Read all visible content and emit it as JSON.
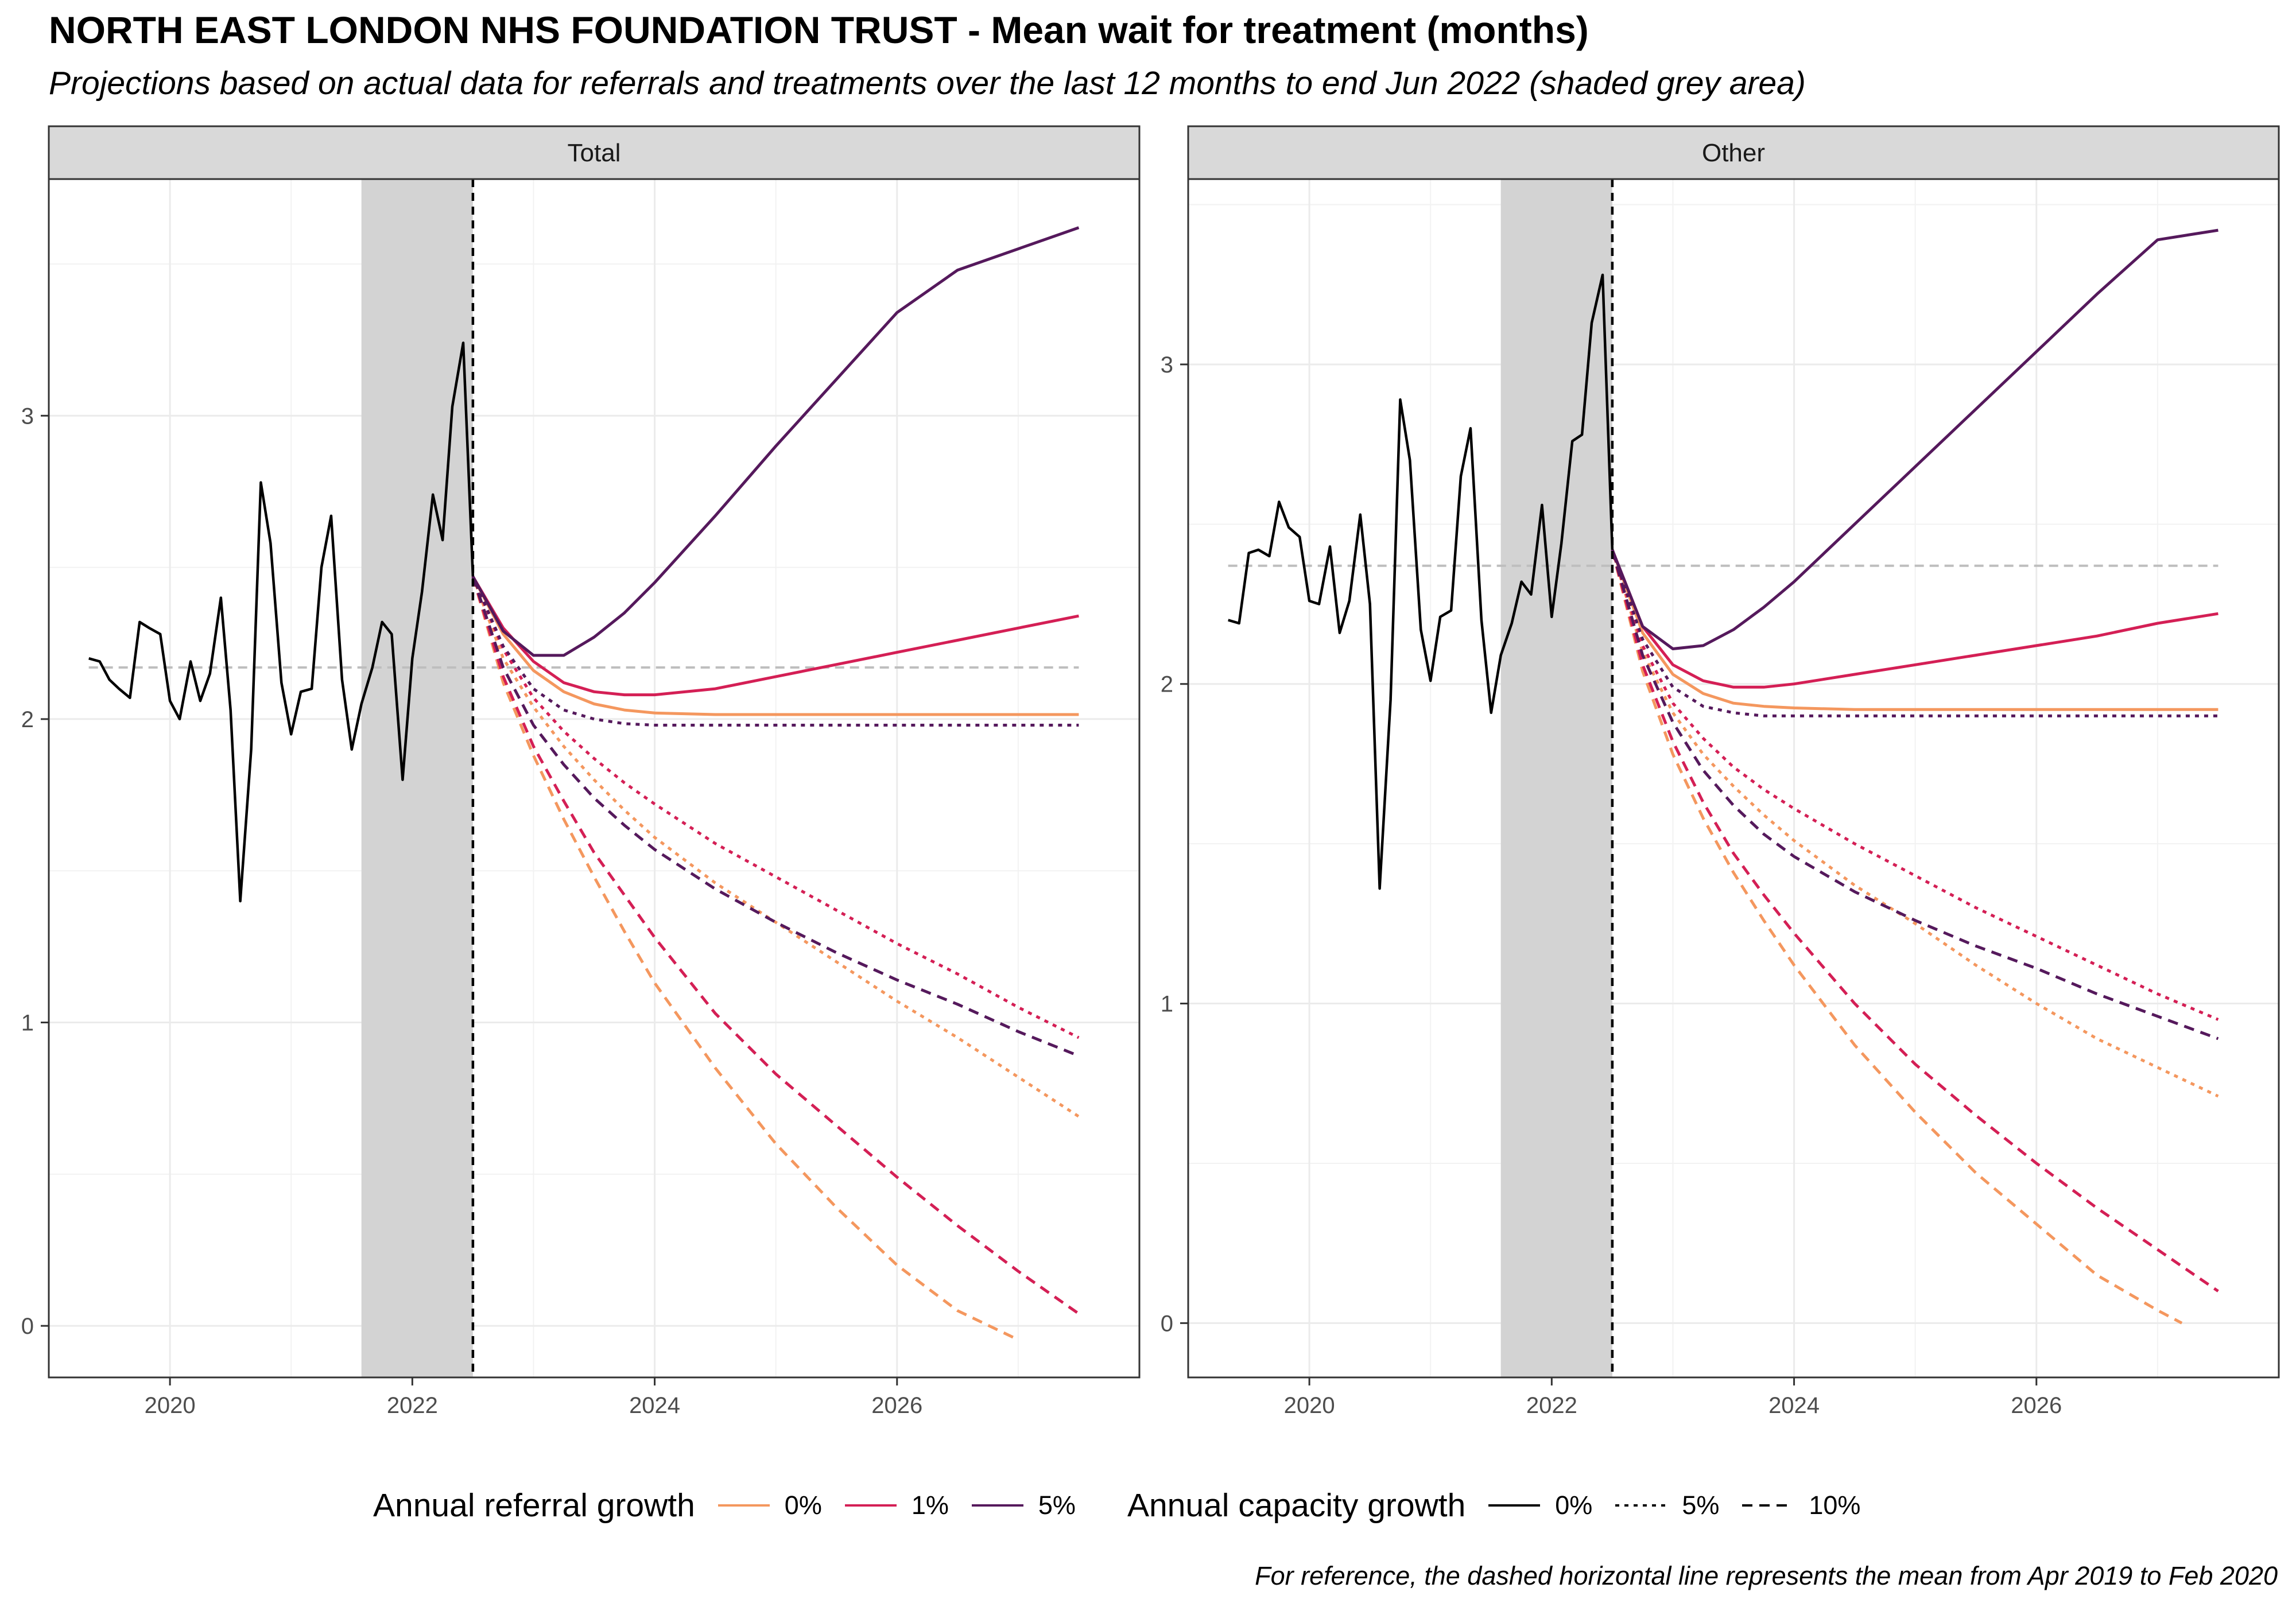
{
  "title": "NORTH EAST LONDON NHS FOUNDATION TRUST - Mean wait for treatment (months)",
  "subtitle": "Projections based on actual data for referrals and treatments over the last 12 months to end Jun 2022 (shaded grey area)",
  "caption": "For reference, the dashed horizontal line represents the mean from Apr 2019 to Feb 2020",
  "legend": {
    "referral": {
      "title": "Annual referral growth",
      "items": [
        {
          "label": "0%",
          "color": "#F4975E"
        },
        {
          "label": "1%",
          "color": "#D41F55"
        },
        {
          "label": "5%",
          "color": "#55195C"
        }
      ]
    },
    "capacity": {
      "title": "Annual capacity growth",
      "items": [
        {
          "label": "0%",
          "dash": "solid"
        },
        {
          "label": "5%",
          "dash": "dotted"
        },
        {
          "label": "10%",
          "dash": "dashed"
        }
      ]
    }
  },
  "chart_data": [
    {
      "type": "line",
      "panel": "Total",
      "xlim": [
        2019.0,
        2028.0
      ],
      "ylim": [
        -0.17,
        3.78
      ],
      "x_ticks": [
        2020,
        2022,
        2024,
        2026
      ],
      "y_ticks": [
        0,
        1,
        2,
        3
      ],
      "shaded_period": [
        2021.58,
        2022.5
      ],
      "projection_start": 2022.5,
      "reference_mean": 2.17,
      "actual": {
        "x": [
          2019.33,
          2019.42,
          2019.5,
          2019.58,
          2019.67,
          2019.75,
          2019.83,
          2019.92,
          2020.0,
          2020.08,
          2020.17,
          2020.25,
          2020.33,
          2020.42,
          2020.5,
          2020.58,
          2020.67,
          2020.75,
          2020.83,
          2020.92,
          2021.0,
          2021.08,
          2021.17,
          2021.25,
          2021.33,
          2021.42,
          2021.5,
          2021.58,
          2021.67,
          2021.75,
          2021.83,
          2021.92,
          2022.0,
          2022.08,
          2022.17,
          2022.25,
          2022.33,
          2022.42,
          2022.5
        ],
        "y": [
          2.2,
          2.19,
          2.13,
          2.1,
          2.07,
          2.32,
          2.3,
          2.28,
          2.06,
          2.0,
          2.19,
          2.06,
          2.15,
          2.4,
          2.03,
          1.4,
          1.9,
          2.78,
          2.58,
          2.12,
          1.95,
          2.09,
          2.1,
          2.5,
          2.67,
          2.13,
          1.9,
          2.05,
          2.17,
          2.32,
          2.28,
          1.8,
          2.2,
          2.42,
          2.74,
          2.59,
          3.03,
          3.24,
          2.47
        ]
      },
      "projections": [
        {
          "referral": "0%",
          "capacity": "0%",
          "x": [
            2022.5,
            2022.75,
            2023.0,
            2023.25,
            2023.5,
            2023.75,
            2024.0,
            2024.5,
            2025.0,
            2025.5,
            2026.0,
            2026.5,
            2027.0,
            2027.5
          ],
          "y": [
            2.47,
            2.28,
            2.16,
            2.09,
            2.05,
            2.03,
            2.02,
            2.015,
            2.015,
            2.015,
            2.015,
            2.015,
            2.015,
            2.015
          ]
        },
        {
          "referral": "0%",
          "capacity": "5%",
          "x": [
            2022.5,
            2022.75,
            2023.0,
            2023.25,
            2023.5,
            2023.75,
            2024.0,
            2024.5,
            2025.0,
            2025.5,
            2026.0,
            2026.5,
            2027.0,
            2027.5
          ],
          "y": [
            2.47,
            2.2,
            2.04,
            1.91,
            1.8,
            1.7,
            1.61,
            1.46,
            1.33,
            1.2,
            1.07,
            0.95,
            0.82,
            0.69
          ]
        },
        {
          "referral": "0%",
          "capacity": "10%",
          "x": [
            2022.5,
            2022.75,
            2023.0,
            2023.25,
            2023.5,
            2023.75,
            2024.0,
            2024.5,
            2025.0,
            2025.5,
            2026.0,
            2026.5,
            2026.97
          ],
          "y": [
            2.47,
            2.12,
            1.88,
            1.67,
            1.48,
            1.3,
            1.13,
            0.85,
            0.6,
            0.39,
            0.2,
            0.05,
            -0.04
          ]
        },
        {
          "referral": "1%",
          "capacity": "0%",
          "x": [
            2022.5,
            2022.75,
            2023.0,
            2023.25,
            2023.5,
            2023.75,
            2024.0,
            2024.5,
            2025.0,
            2025.5,
            2026.0,
            2026.5,
            2027.0,
            2027.5
          ],
          "y": [
            2.47,
            2.3,
            2.19,
            2.12,
            2.09,
            2.08,
            2.08,
            2.1,
            2.14,
            2.18,
            2.22,
            2.26,
            2.3,
            2.34
          ]
        },
        {
          "referral": "1%",
          "capacity": "5%",
          "x": [
            2022.5,
            2022.75,
            2023.0,
            2023.25,
            2023.5,
            2023.75,
            2024.0,
            2024.5,
            2025.0,
            2025.5,
            2026.0,
            2026.5,
            2027.0,
            2027.5
          ],
          "y": [
            2.47,
            2.23,
            2.07,
            1.96,
            1.87,
            1.79,
            1.72,
            1.59,
            1.48,
            1.37,
            1.26,
            1.16,
            1.05,
            0.95
          ]
        },
        {
          "referral": "1%",
          "capacity": "10%",
          "x": [
            2022.5,
            2022.75,
            2023.0,
            2023.25,
            2023.5,
            2023.75,
            2024.0,
            2024.5,
            2025.0,
            2025.5,
            2026.0,
            2026.5,
            2027.0,
            2027.5
          ],
          "y": [
            2.47,
            2.14,
            1.91,
            1.73,
            1.56,
            1.42,
            1.28,
            1.03,
            0.83,
            0.66,
            0.49,
            0.33,
            0.18,
            0.04
          ]
        },
        {
          "referral": "5%",
          "capacity": "0%",
          "x": [
            2022.5,
            2022.75,
            2023.0,
            2023.25,
            2023.5,
            2023.75,
            2024.0,
            2024.5,
            2025.0,
            2025.5,
            2026.0,
            2026.5,
            2027.0,
            2027.5
          ],
          "y": [
            2.47,
            2.29,
            2.21,
            2.21,
            2.27,
            2.35,
            2.45,
            2.67,
            2.9,
            3.12,
            3.34,
            3.48,
            3.55,
            3.62
          ]
        },
        {
          "referral": "5%",
          "capacity": "5%",
          "x": [
            2022.5,
            2022.75,
            2023.0,
            2023.25,
            2023.5,
            2023.75,
            2024.0,
            2024.5,
            2025.0,
            2025.5,
            2026.0,
            2026.5,
            2027.0,
            2027.5
          ],
          "y": [
            2.47,
            2.24,
            2.1,
            2.03,
            2.0,
            1.985,
            1.98,
            1.98,
            1.98,
            1.98,
            1.98,
            1.98,
            1.98,
            1.98
          ]
        },
        {
          "referral": "5%",
          "capacity": "10%",
          "x": [
            2022.5,
            2022.75,
            2023.0,
            2023.25,
            2023.5,
            2023.75,
            2024.0,
            2024.5,
            2025.0,
            2025.5,
            2026.0,
            2026.5,
            2027.0,
            2027.5
          ],
          "y": [
            2.47,
            2.17,
            1.98,
            1.85,
            1.74,
            1.65,
            1.57,
            1.44,
            1.33,
            1.23,
            1.14,
            1.06,
            0.97,
            0.89
          ]
        }
      ]
    },
    {
      "type": "line",
      "panel": "Other",
      "xlim": [
        2019.0,
        2028.0
      ],
      "ylim": [
        -0.17,
        3.58
      ],
      "x_ticks": [
        2020,
        2022,
        2024,
        2026
      ],
      "y_ticks": [
        0,
        1,
        2,
        3
      ],
      "shaded_period": [
        2021.58,
        2022.5
      ],
      "projection_start": 2022.5,
      "reference_mean": 2.37,
      "actual": {
        "x": [
          2019.33,
          2019.42,
          2019.5,
          2019.58,
          2019.67,
          2019.75,
          2019.83,
          2019.92,
          2020.0,
          2020.08,
          2020.17,
          2020.25,
          2020.33,
          2020.42,
          2020.5,
          2020.58,
          2020.67,
          2020.75,
          2020.83,
          2020.92,
          2021.0,
          2021.08,
          2021.17,
          2021.25,
          2021.33,
          2021.42,
          2021.5,
          2021.58,
          2021.67,
          2021.75,
          2021.83,
          2021.92,
          2022.0,
          2022.08,
          2022.17,
          2022.25,
          2022.33,
          2022.42,
          2022.5
        ],
        "y": [
          2.2,
          2.19,
          2.41,
          2.42,
          2.4,
          2.57,
          2.49,
          2.46,
          2.26,
          2.25,
          2.43,
          2.16,
          2.26,
          2.53,
          2.25,
          1.36,
          1.95,
          2.89,
          2.7,
          2.17,
          2.01,
          2.21,
          2.23,
          2.65,
          2.8,
          2.2,
          1.91,
          2.09,
          2.19,
          2.32,
          2.28,
          2.56,
          2.21,
          2.44,
          2.76,
          2.78,
          3.13,
          3.28,
          2.42
        ]
      },
      "projections": [
        {
          "referral": "0%",
          "capacity": "0%",
          "x": [
            2022.5,
            2022.75,
            2023.0,
            2023.25,
            2023.5,
            2023.75,
            2024.0,
            2024.5,
            2025.0,
            2025.5,
            2026.0,
            2026.5,
            2027.0,
            2027.5
          ],
          "y": [
            2.42,
            2.16,
            2.03,
            1.97,
            1.94,
            1.93,
            1.925,
            1.92,
            1.92,
            1.92,
            1.92,
            1.92,
            1.92,
            1.92
          ]
        },
        {
          "referral": "0%",
          "capacity": "5%",
          "x": [
            2022.5,
            2022.75,
            2023.0,
            2023.25,
            2023.5,
            2023.75,
            2024.0,
            2024.5,
            2025.0,
            2025.5,
            2026.0,
            2026.5,
            2027.0,
            2027.5
          ],
          "y": [
            2.42,
            2.1,
            1.91,
            1.78,
            1.68,
            1.59,
            1.51,
            1.37,
            1.25,
            1.12,
            1.0,
            0.89,
            0.8,
            0.71
          ]
        },
        {
          "referral": "0%",
          "capacity": "10%",
          "x": [
            2022.5,
            2022.75,
            2023.0,
            2023.25,
            2023.5,
            2023.75,
            2024.0,
            2024.5,
            2025.0,
            2025.5,
            2026.0,
            2026.5,
            2027.0,
            2027.2
          ],
          "y": [
            2.42,
            2.04,
            1.78,
            1.58,
            1.41,
            1.26,
            1.12,
            0.87,
            0.66,
            0.47,
            0.31,
            0.15,
            0.04,
            0.0
          ]
        },
        {
          "referral": "1%",
          "capacity": "0%",
          "x": [
            2022.5,
            2022.75,
            2023.0,
            2023.25,
            2023.5,
            2023.75,
            2024.0,
            2024.5,
            2025.0,
            2025.5,
            2026.0,
            2026.5,
            2027.0,
            2027.5
          ],
          "y": [
            2.42,
            2.18,
            2.06,
            2.01,
            1.99,
            1.99,
            2.0,
            2.03,
            2.06,
            2.09,
            2.12,
            2.15,
            2.19,
            2.22
          ]
        },
        {
          "referral": "1%",
          "capacity": "5%",
          "x": [
            2022.5,
            2022.75,
            2023.0,
            2023.25,
            2023.5,
            2023.75,
            2024.0,
            2024.5,
            2025.0,
            2025.5,
            2026.0,
            2026.5,
            2027.0,
            2027.5
          ],
          "y": [
            2.42,
            2.12,
            1.94,
            1.83,
            1.74,
            1.67,
            1.61,
            1.5,
            1.4,
            1.3,
            1.21,
            1.12,
            1.03,
            0.95
          ]
        },
        {
          "referral": "1%",
          "capacity": "10%",
          "x": [
            2022.5,
            2022.75,
            2023.0,
            2023.25,
            2023.5,
            2023.75,
            2024.0,
            2024.5,
            2025.0,
            2025.5,
            2026.0,
            2026.5,
            2027.0,
            2027.5
          ],
          "y": [
            2.42,
            2.06,
            1.82,
            1.63,
            1.47,
            1.34,
            1.22,
            1.0,
            0.81,
            0.65,
            0.5,
            0.36,
            0.23,
            0.1
          ]
        },
        {
          "referral": "5%",
          "capacity": "0%",
          "x": [
            2022.5,
            2022.75,
            2023.0,
            2023.25,
            2023.5,
            2023.75,
            2024.0,
            2024.5,
            2025.0,
            2025.5,
            2026.0,
            2026.5,
            2027.0,
            2027.5
          ],
          "y": [
            2.42,
            2.18,
            2.11,
            2.12,
            2.17,
            2.24,
            2.32,
            2.5,
            2.68,
            2.86,
            3.04,
            3.22,
            3.39,
            3.42
          ]
        },
        {
          "referral": "5%",
          "capacity": "5%",
          "x": [
            2022.5,
            2022.75,
            2023.0,
            2023.25,
            2023.5,
            2023.75,
            2024.0,
            2024.5,
            2025.0,
            2025.5,
            2026.0,
            2026.5,
            2027.0,
            2027.5
          ],
          "y": [
            2.42,
            2.14,
            1.99,
            1.93,
            1.91,
            1.9,
            1.9,
            1.9,
            1.9,
            1.9,
            1.9,
            1.9,
            1.9,
            1.9
          ]
        },
        {
          "referral": "5%",
          "capacity": "10%",
          "x": [
            2022.5,
            2022.75,
            2023.0,
            2023.25,
            2023.5,
            2023.75,
            2024.0,
            2024.5,
            2025.0,
            2025.5,
            2026.0,
            2026.5,
            2027.0,
            2027.5
          ],
          "y": [
            2.42,
            2.09,
            1.88,
            1.73,
            1.62,
            1.53,
            1.46,
            1.35,
            1.26,
            1.18,
            1.11,
            1.03,
            0.96,
            0.89
          ]
        }
      ]
    }
  ]
}
